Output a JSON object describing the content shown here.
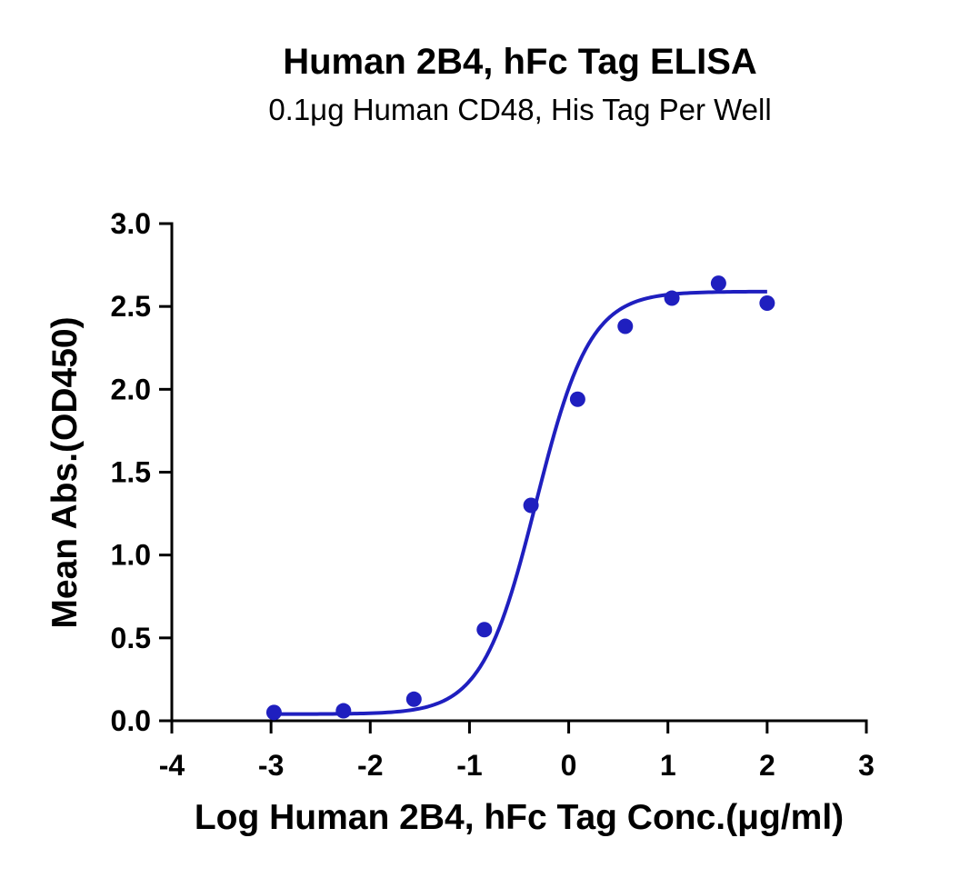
{
  "chart_data": {
    "type": "scatter",
    "title": "Human 2B4, hFc Tag ELISA",
    "subtitle": "0.1μg Human CD48, His Tag Per Well",
    "xlabel": "Log Human 2B4, hFc Tag Conc.(μg/ml)",
    "ylabel": "Mean Abs.(OD450)",
    "xlim": [
      -4,
      3
    ],
    "ylim": [
      0,
      3.0
    ],
    "x_ticks": [
      "-4",
      "-3",
      "-2",
      "-1",
      "0",
      "1",
      "2",
      "3"
    ],
    "y_ticks": [
      "0.0",
      "0.5",
      "1.0",
      "1.5",
      "2.0",
      "2.5",
      "3.0"
    ],
    "grid": false,
    "legend": "none",
    "color": "#1f1fbf",
    "series": [
      {
        "points": [
          {
            "x": -2.97,
            "y": 0.05
          },
          {
            "x": -2.27,
            "y": 0.06
          },
          {
            "x": -1.56,
            "y": 0.13
          },
          {
            "x": -0.85,
            "y": 0.55
          },
          {
            "x": -0.38,
            "y": 1.3
          },
          {
            "x": 0.09,
            "y": 1.94
          },
          {
            "x": 0.57,
            "y": 2.38
          },
          {
            "x": 1.04,
            "y": 2.55
          },
          {
            "x": 1.51,
            "y": 2.64
          },
          {
            "x": 2.0,
            "y": 2.52
          }
        ],
        "fit": {
          "model": "4PL",
          "bottom": 0.04,
          "top": 2.59,
          "logEC50": -0.33,
          "hill": 1.6
        }
      }
    ]
  }
}
